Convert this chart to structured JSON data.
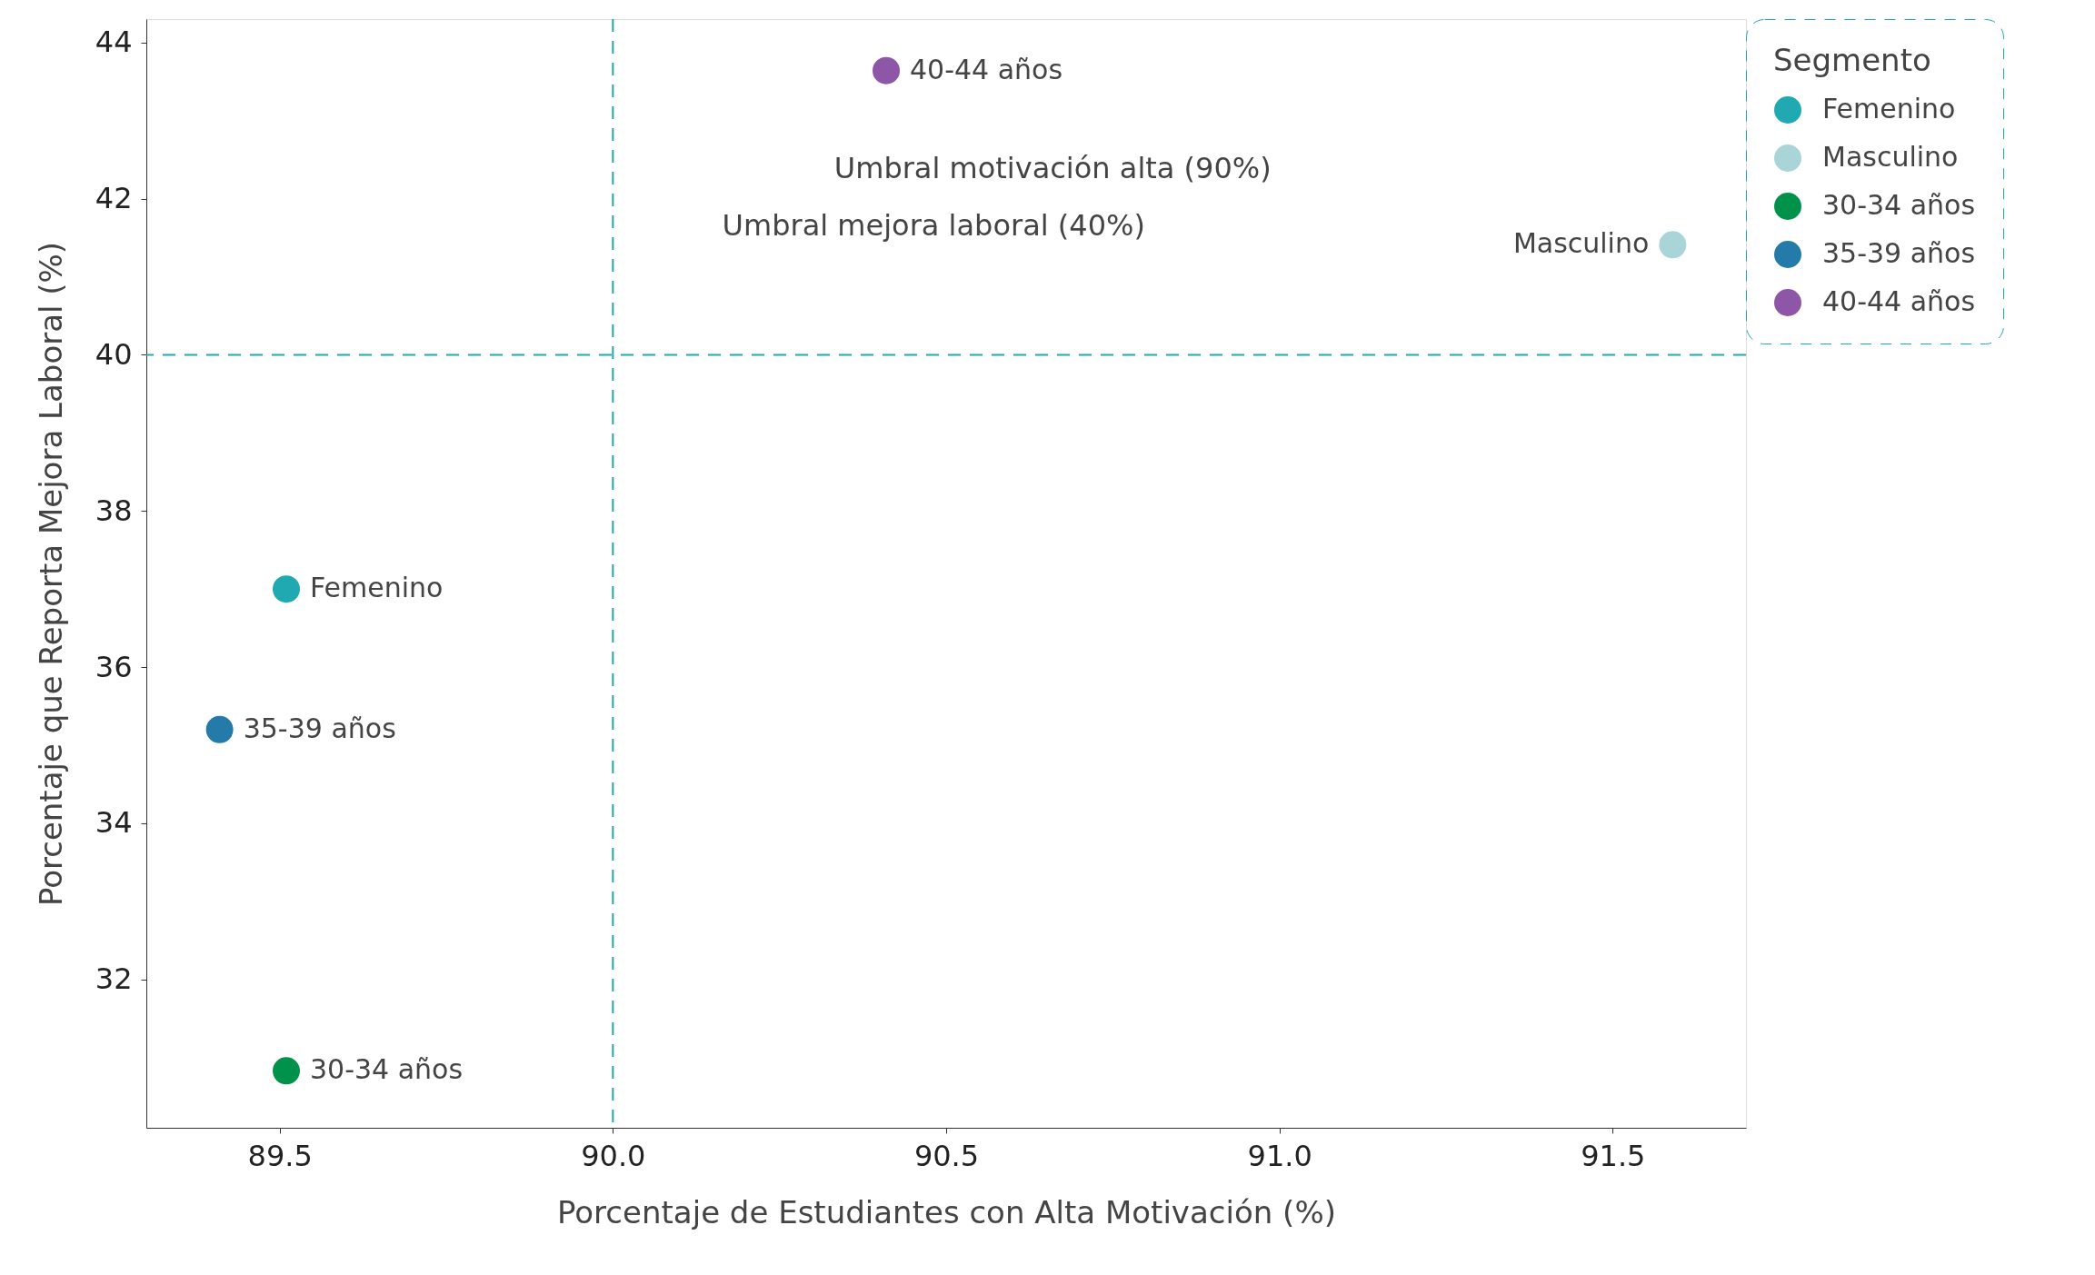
{
  "chart_data": {
    "type": "scatter",
    "xlabel": "Porcentaje de Estudiantes con Alta Motivación (%)",
    "ylabel": "Porcentaje que Reporta Mejora Laboral (%)",
    "legend_title": "Segmento",
    "xlim": [
      89.3,
      91.7
    ],
    "ylim": [
      30.1,
      44.3
    ],
    "xticks": [
      89.5,
      {
        "value": 90,
        "label": "90.0"
      },
      90.5,
      {
        "value": 91,
        "label": "91.0"
      },
      91.5
    ],
    "yticks": [
      32,
      34,
      36,
      38,
      40,
      42,
      44
    ],
    "grid": false,
    "legend": "right",
    "marker": "circle",
    "series": [
      {
        "name": "Femenino",
        "color": "#20a9b1",
        "x": [
          89.51
        ],
        "values": [
          37.0
        ]
      },
      {
        "name": "Masculino",
        "color": "#a9d5d9",
        "x": [
          91.59
        ],
        "values": [
          41.41
        ]
      },
      {
        "name": "30-34 años",
        "color": "#00924a",
        "x": [
          89.51
        ],
        "values": [
          30.83
        ]
      },
      {
        "name": "35-39 años",
        "color": "#247aa9",
        "x": [
          89.41
        ],
        "values": [
          35.2
        ]
      },
      {
        "name": "40-44 años",
        "color": "#8e56a6",
        "x": [
          90.41
        ],
        "values": [
          43.64
        ]
      }
    ],
    "ref_lines": [
      {
        "axis": "x",
        "value": 90,
        "color": "#20a9b1",
        "line_style": "dashed"
      },
      {
        "axis": "y",
        "value": 40,
        "color": "#20a9b1",
        "line_style": "dashed"
      }
    ],
    "annotations": [
      "Umbral motivación alta (90%)",
      "Umbral mejora laboral (40%)"
    ]
  }
}
